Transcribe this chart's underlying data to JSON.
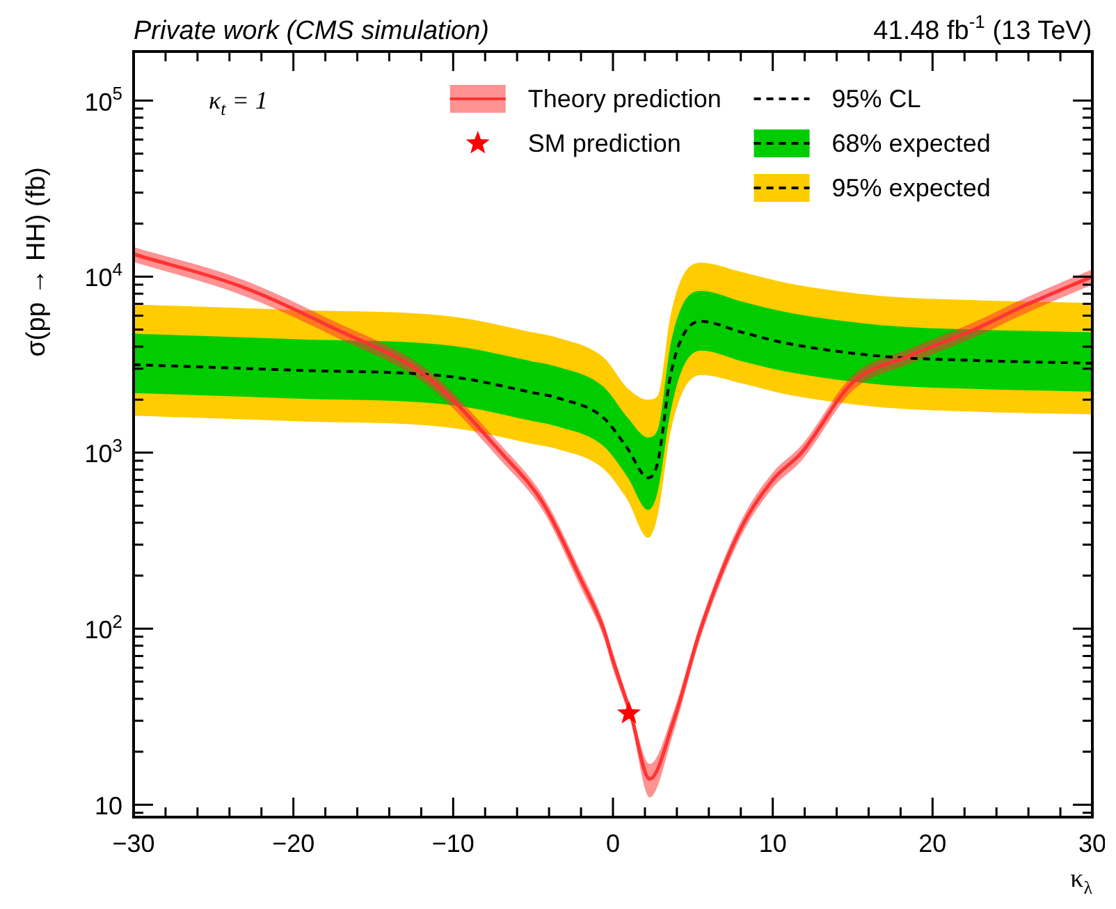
{
  "chart_data": {
    "type": "line",
    "title": "Private work (CMS simulation)",
    "subtitle": "41.48 fb$^{-1}$ (13 TeV)",
    "xlabel": "κ$_{λ}$",
    "ylabel": "σ(pp → HH) (fb)",
    "annotations": [
      "κ$_{t}$ = 1"
    ],
    "log": "y",
    "legend": "top",
    "xlim": [
      -30,
      30
    ],
    "ylim": [
      8.5,
      190000
    ],
    "xticks": [
      {
        "value": -30,
        "label": "−30"
      },
      {
        "value": -28,
        "label": null
      },
      {
        "value": -26,
        "label": null
      },
      {
        "value": -24,
        "label": null
      },
      {
        "value": -22,
        "label": null
      },
      {
        "value": -20,
        "label": "−20"
      },
      {
        "value": -18,
        "label": null
      },
      {
        "value": -16,
        "label": null
      },
      {
        "value": -14,
        "label": null
      },
      {
        "value": -12,
        "label": null
      },
      {
        "value": -10,
        "label": "−10"
      },
      {
        "value": -8,
        "label": null
      },
      {
        "value": -6,
        "label": null
      },
      {
        "value": -4,
        "label": null
      },
      {
        "value": -2,
        "label": null
      },
      0,
      {
        "value": 2,
        "label": null
      },
      {
        "value": 4,
        "label": null
      },
      {
        "value": 6,
        "label": null
      },
      {
        "value": 8,
        "label": null
      },
      10,
      {
        "value": 12,
        "label": null
      },
      {
        "value": 14,
        "label": null
      },
      {
        "value": 16,
        "label": null
      },
      {
        "value": 18,
        "label": null
      },
      20,
      {
        "value": 22,
        "label": null
      },
      {
        "value": 24,
        "label": null
      },
      {
        "value": 26,
        "label": null
      },
      {
        "value": 28,
        "label": null
      },
      30
    ],
    "yticks": [
      {
        "value": 9,
        "label": null
      },
      10,
      {
        "value": 20,
        "label": null
      },
      {
        "value": 30,
        "label": null
      },
      {
        "value": 40,
        "label": null
      },
      {
        "value": 50,
        "label": null
      },
      {
        "value": 60,
        "label": null
      },
      {
        "value": 70,
        "label": null
      },
      {
        "value": 80,
        "label": null
      },
      {
        "value": 90,
        "label": null
      },
      {
        "value": 100,
        "label": "10$^{2}$"
      },
      {
        "value": 200,
        "label": null
      },
      {
        "value": 300,
        "label": null
      },
      {
        "value": 400,
        "label": null
      },
      {
        "value": 500,
        "label": null
      },
      {
        "value": 600,
        "label": null
      },
      {
        "value": 700,
        "label": null
      },
      {
        "value": 800,
        "label": null
      },
      {
        "value": 900,
        "label": null
      },
      {
        "value": 1000,
        "label": "10$^{3}$"
      },
      {
        "value": 2000,
        "label": null
      },
      {
        "value": 3000,
        "label": null
      },
      {
        "value": 4000,
        "label": null
      },
      {
        "value": 5000,
        "label": null
      },
      {
        "value": 6000,
        "label": null
      },
      {
        "value": 7000,
        "label": null
      },
      {
        "value": 8000,
        "label": null
      },
      {
        "value": 9000,
        "label": null
      },
      {
        "value": 10000,
        "label": "10$^{4}$"
      },
      {
        "value": 20000,
        "label": null
      },
      {
        "value": 30000,
        "label": null
      },
      {
        "value": 40000,
        "label": null
      },
      {
        "value": 50000,
        "label": null
      },
      {
        "value": 60000,
        "label": null
      },
      {
        "value": 70000,
        "label": null
      },
      {
        "value": 80000,
        "label": null
      },
      {
        "value": 90000,
        "label": null
      },
      {
        "value": 100000,
        "label": "10$^{5}$"
      }
    ],
    "series": [
      {
        "name": "Theory prediction",
        "type": "line",
        "color": "#ff3333",
        "x": [
          -30,
          -23.3,
          -17.5,
          -11.6,
          -7,
          -4.4,
          -2,
          -0.6,
          0,
          1.1,
          2.3,
          3.8,
          5.5,
          8,
          10,
          11.8,
          15,
          18.5,
          22.6,
          26,
          30
        ],
        "values": [
          13400,
          8800,
          5100,
          2680,
          1000,
          520,
          190,
          100,
          66,
          33,
          14,
          30,
          100,
          370,
          700,
          1000,
          2500,
          3530,
          5000,
          7000,
          10000
        ],
        "lower": [
          12100,
          7900,
          4600,
          2410,
          900,
          470,
          170,
          90,
          59,
          30,
          11,
          26,
          90,
          333,
          630,
          900,
          2250,
          3180,
          4500,
          6300,
          9000
        ],
        "upper": [
          14700,
          9700,
          5600,
          2950,
          1100,
          570,
          210,
          110,
          73,
          36,
          17,
          34,
          110,
          407,
          770,
          1100,
          2750,
          3880,
          5500,
          7700,
          11000
        ]
      },
      {
        "name": "SM prediction",
        "type": "scatter",
        "marker": "star",
        "color": "#ff0000",
        "x": [
          1
        ],
        "values": [
          33
        ]
      },
      {
        "name": "95% CL",
        "type": "line",
        "line_style": "dashed",
        "color": "#000000",
        "x": [
          -30,
          -20,
          -10,
          -5,
          -3.5,
          -0.6,
          0.9,
          2.2,
          2.8,
          3.6,
          4.35,
          5.5,
          8.1,
          11,
          16.8,
          22.6,
          30
        ],
        "values": [
          3160,
          2940,
          2690,
          2190,
          2050,
          1580,
          1060,
          720,
          880,
          2730,
          4560,
          5570,
          4820,
          4160,
          3530,
          3340,
          3220
        ]
      },
      {
        "name": "68% expected",
        "type": "line",
        "line_style": "dashed",
        "color": "#00cc00",
        "x": [
          -30,
          -20,
          -10,
          -5,
          -3.5,
          -0.6,
          0.9,
          2.2,
          2.8,
          3.6,
          4.35,
          5.5,
          8.1,
          11,
          16.8,
          22.6,
          30
        ],
        "values": [
          null,
          null,
          null,
          null,
          null,
          null,
          null,
          null,
          null,
          null,
          null,
          null,
          null,
          null,
          null,
          null,
          null
        ],
        "lower": [
          2180,
          2030,
          1860,
          1510,
          1410,
          1090,
          730,
          473,
          600,
          1700,
          3000,
          3800,
          3300,
          2870,
          2430,
          2300,
          2220
        ],
        "upper": [
          4740,
          4410,
          4040,
          3290,
          3080,
          2370,
          1590,
          1220,
          1350,
          4100,
          6900,
          8300,
          7200,
          6240,
          5300,
          5000,
          4830
        ]
      },
      {
        "name": "95% expected",
        "type": "line",
        "line_style": "dashed",
        "color": "#ffcc00",
        "x": [
          -30,
          -20,
          -10,
          -5,
          -3.5,
          -0.6,
          0.9,
          2.2,
          2.8,
          3.6,
          4.35,
          5.5,
          8.1,
          11,
          16.8,
          22.6,
          30
        ],
        "values": [
          null,
          null,
          null,
          null,
          null,
          null,
          null,
          null,
          null,
          null,
          null,
          null,
          null,
          null,
          null,
          null,
          null
        ],
        "lower": [
          1620,
          1510,
          1380,
          1120,
          1050,
          810,
          540,
          328,
          440,
          1300,
          2200,
          2760,
          2470,
          2130,
          1810,
          1710,
          1650
        ],
        "upper": [
          6950,
          6470,
          5920,
          4820,
          4510,
          3480,
          2330,
          2000,
          2100,
          6000,
          10000,
          12000,
          10600,
          9150,
          7770,
          7350,
          7080
        ]
      }
    ]
  }
}
